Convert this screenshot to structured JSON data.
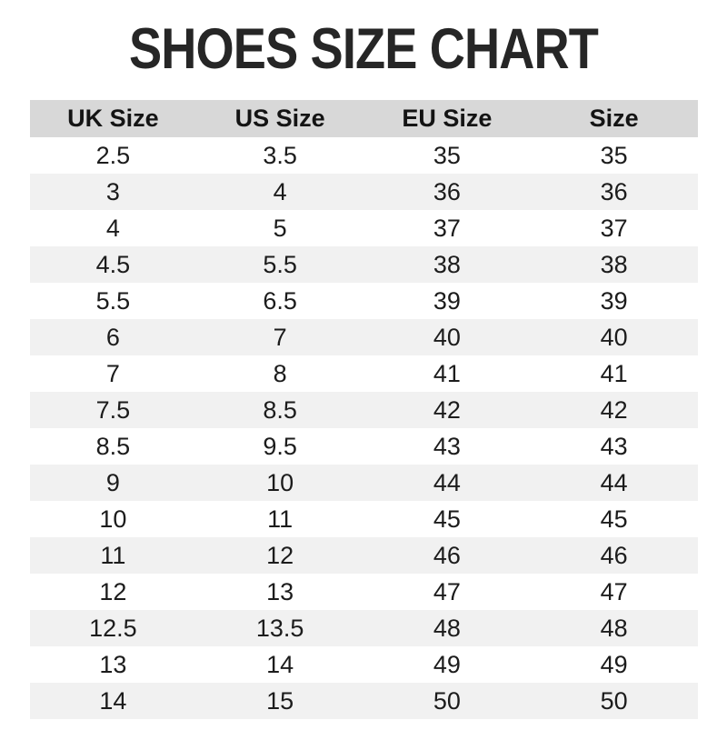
{
  "page": {
    "title": "SHOES SIZE CHART"
  },
  "colors": {
    "page_bg": "#ffffff",
    "title_text": "#262626",
    "header_bg": "#d8d8d8",
    "alt_row_bg": "#f1f1f1",
    "body_text": "#1c1c1c"
  },
  "chart_data": {
    "type": "table",
    "title": "SHOES SIZE CHART",
    "columns": [
      "UK Size",
      "US Size",
      "EU Size",
      "Size"
    ],
    "rows": [
      [
        "2.5",
        "3.5",
        "35",
        "35"
      ],
      [
        "3",
        "4",
        "36",
        "36"
      ],
      [
        "4",
        "5",
        "37",
        "37"
      ],
      [
        "4.5",
        "5.5",
        "38",
        "38"
      ],
      [
        "5.5",
        "6.5",
        "39",
        "39"
      ],
      [
        "6",
        "7",
        "40",
        "40"
      ],
      [
        "7",
        "8",
        "41",
        "41"
      ],
      [
        "7.5",
        "8.5",
        "42",
        "42"
      ],
      [
        "8.5",
        "9.5",
        "43",
        "43"
      ],
      [
        "9",
        "10",
        "44",
        "44"
      ],
      [
        "10",
        "11",
        "45",
        "45"
      ],
      [
        "11",
        "12",
        "46",
        "46"
      ],
      [
        "12",
        "13",
        "47",
        "47"
      ],
      [
        "12.5",
        "13.5",
        "48",
        "48"
      ],
      [
        "13",
        "14",
        "49",
        "49"
      ],
      [
        "14",
        "15",
        "50",
        "50"
      ]
    ],
    "layout": {
      "striped_rows": true,
      "header_background": "#d8d8d8",
      "stripe_background": "#f1f1f1"
    }
  }
}
